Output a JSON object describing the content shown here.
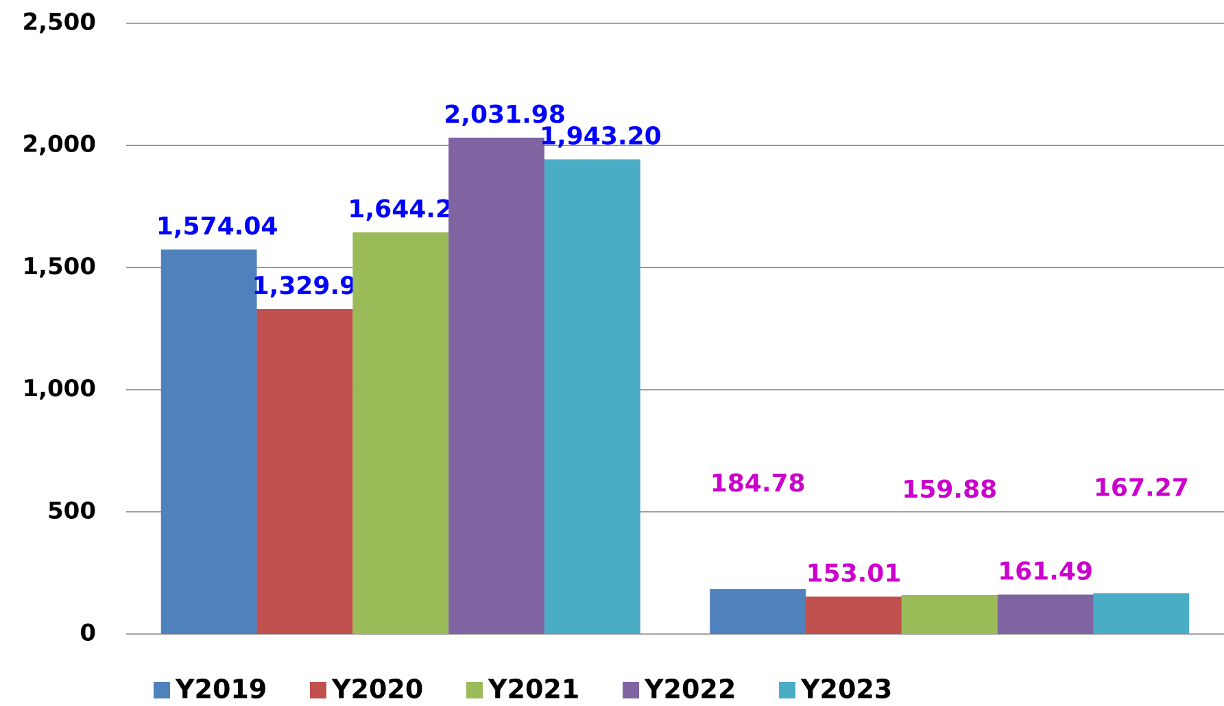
{
  "chart_data": {
    "type": "bar",
    "categories": [
      null,
      null
    ],
    "series": [
      {
        "name": "Y2019",
        "color": "#4f81bd",
        "values": [
          1574.04,
          184.78
        ],
        "value_labels": [
          "1,574.04",
          "184.78"
        ]
      },
      {
        "name": "Y2020",
        "color": "#c0504d",
        "values": [
          1329.96,
          153.01
        ],
        "value_labels": [
          "1,329.96",
          "153.01"
        ]
      },
      {
        "name": "Y2021",
        "color": "#9bbb59",
        "values": [
          1644.22,
          159.88
        ],
        "value_labels": [
          "1,644.22",
          "159.88"
        ]
      },
      {
        "name": "Y2022",
        "color": "#8064a2",
        "values": [
          2031.98,
          161.49
        ],
        "value_labels": [
          "2,031.98",
          "161.49"
        ]
      },
      {
        "name": "Y2023",
        "color": "#4bacc6",
        "values": [
          1943.2,
          167.27
        ],
        "value_labels": [
          "1,943.20",
          "167.27"
        ]
      }
    ],
    "label_colors": [
      "#0000ff",
      "#cc00cc"
    ],
    "ylim": [
      0,
      2500
    ],
    "yticks": [
      0,
      500,
      {
        "value": 1000,
        "label": "1,000"
      },
      {
        "value": 1500,
        "label": "1,500"
      },
      {
        "value": 2000,
        "label": "2,000"
      },
      {
        "value": 2500,
        "label": "2,500"
      }
    ],
    "grid": true,
    "legend": "bottom"
  }
}
